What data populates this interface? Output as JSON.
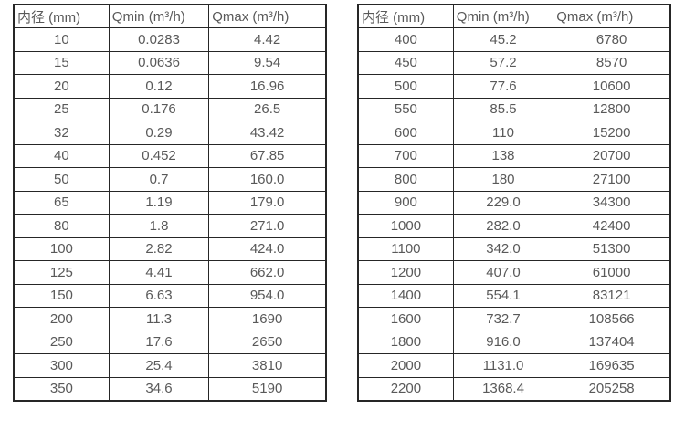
{
  "colors": {
    "background": "#ffffff",
    "border": "#262626",
    "text": "#595959"
  },
  "tables": [
    {
      "name": "diameter-flow-table-small-sizes",
      "headers": [
        "内径 (mm)",
        "Qmin (m³/h)",
        "Qmax (m³/h)"
      ],
      "rows": [
        [
          "10",
          "0.0283",
          "4.42"
        ],
        [
          "15",
          "0.0636",
          "9.54"
        ],
        [
          "20",
          "0.12",
          "16.96"
        ],
        [
          "25",
          "0.176",
          "26.5"
        ],
        [
          "32",
          "0.29",
          "43.42"
        ],
        [
          "40",
          "0.452",
          "67.85"
        ],
        [
          "50",
          "0.7",
          "160.0"
        ],
        [
          "65",
          "1.19",
          "179.0"
        ],
        [
          "80",
          "1.8",
          "271.0"
        ],
        [
          "100",
          "2.82",
          "424.0"
        ],
        [
          "125",
          "4.41",
          "662.0"
        ],
        [
          "150",
          "6.63",
          "954.0"
        ],
        [
          "200",
          "11.3",
          "1690"
        ],
        [
          "250",
          "17.6",
          "2650"
        ],
        [
          "300",
          "25.4",
          "3810"
        ],
        [
          "350",
          "34.6",
          "5190"
        ]
      ]
    },
    {
      "name": "diameter-flow-table-large-sizes",
      "headers": [
        "内径 (mm)",
        "Qmin (m³/h)",
        "Qmax (m³/h)"
      ],
      "rows": [
        [
          "400",
          "45.2",
          "6780"
        ],
        [
          "450",
          "57.2",
          "8570"
        ],
        [
          "500",
          "77.6",
          "10600"
        ],
        [
          "550",
          "85.5",
          "12800"
        ],
        [
          "600",
          "110",
          "15200"
        ],
        [
          "700",
          "138",
          "20700"
        ],
        [
          "800",
          "180",
          "27100"
        ],
        [
          "900",
          "229.0",
          "34300"
        ],
        [
          "1000",
          "282.0",
          "42400"
        ],
        [
          "1100",
          "342.0",
          "51300"
        ],
        [
          "1200",
          "407.0",
          "61000"
        ],
        [
          "1400",
          "554.1",
          "83121"
        ],
        [
          "1600",
          "732.7",
          "108566"
        ],
        [
          "1800",
          "916.0",
          "137404"
        ],
        [
          "2000",
          "1131.0",
          "169635"
        ],
        [
          "2200",
          "1368.4",
          "205258"
        ]
      ]
    }
  ]
}
